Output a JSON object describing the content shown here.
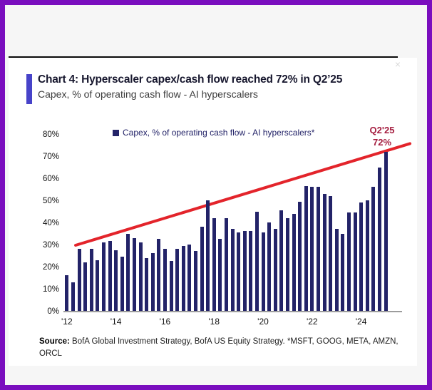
{
  "page": {
    "border_color": "#7a0ebe",
    "background": "#f6f6f6"
  },
  "header": {
    "title": "Chart 4: Hyperscaler capex/cash flow reached 72% in Q2’25",
    "subtitle": "Capex, % of operating cash flow - AI hyperscalers",
    "accent_color": "#4743c9"
  },
  "legend": {
    "label": "Capex, % of operating cash flow - AI hyperscalers*",
    "swatch_color": "#232368"
  },
  "annotation": {
    "line1": "Q2'25",
    "line2": "72%",
    "color": "#a51e40"
  },
  "close_icon": {
    "glyph": "×"
  },
  "source": {
    "label": "Source:",
    "text": " BofA Global Investment Strategy, BofA US Equity Strategy. *MSFT, GOOG, META, AMZN, ORCL"
  },
  "chart_data": {
    "type": "bar",
    "title": "Capex, % of operating cash flow - AI hyperscalers*",
    "unit": "percent of operating cash flow",
    "frequency": "quarterly",
    "ylim": [
      0,
      80
    ],
    "grid": false,
    "legend_position": "top-center",
    "bar_color": "#232368",
    "values": [
      16,
      13,
      28,
      22,
      28,
      23,
      31,
      31.5,
      27.5,
      24.5,
      35,
      33,
      31,
      24,
      26,
      32.5,
      28,
      22.5,
      28,
      29.5,
      30,
      27,
      38,
      50,
      42,
      32.5,
      42,
      37,
      35.5,
      36,
      36,
      45,
      35.5,
      40,
      37,
      45.5,
      42,
      44,
      49.5,
      56.5,
      56,
      56,
      53,
      52,
      37,
      35,
      44.5,
      44.5,
      49,
      50,
      56,
      65,
      72
    ],
    "last_point_label": {
      "quarter": "Q2'25",
      "value": 72
    },
    "y_ticks": [
      0,
      10,
      20,
      30,
      40,
      50,
      60,
      70,
      80
    ],
    "y_tick_suffix": "%",
    "x_tick_labels": [
      {
        "index": 0,
        "label": "'12"
      },
      {
        "index": 8,
        "label": "'14"
      },
      {
        "index": 16,
        "label": "'16"
      },
      {
        "index": 24,
        "label": "'18"
      },
      {
        "index": 32,
        "label": "'20"
      },
      {
        "index": 40,
        "label": "'22"
      },
      {
        "index": 48,
        "label": "'24"
      }
    ],
    "trendline": {
      "color": "#e3242b",
      "x1_frac": 0.032,
      "y1_pct": 30,
      "x2_frac": 1.03,
      "y2_pct": 76
    }
  }
}
